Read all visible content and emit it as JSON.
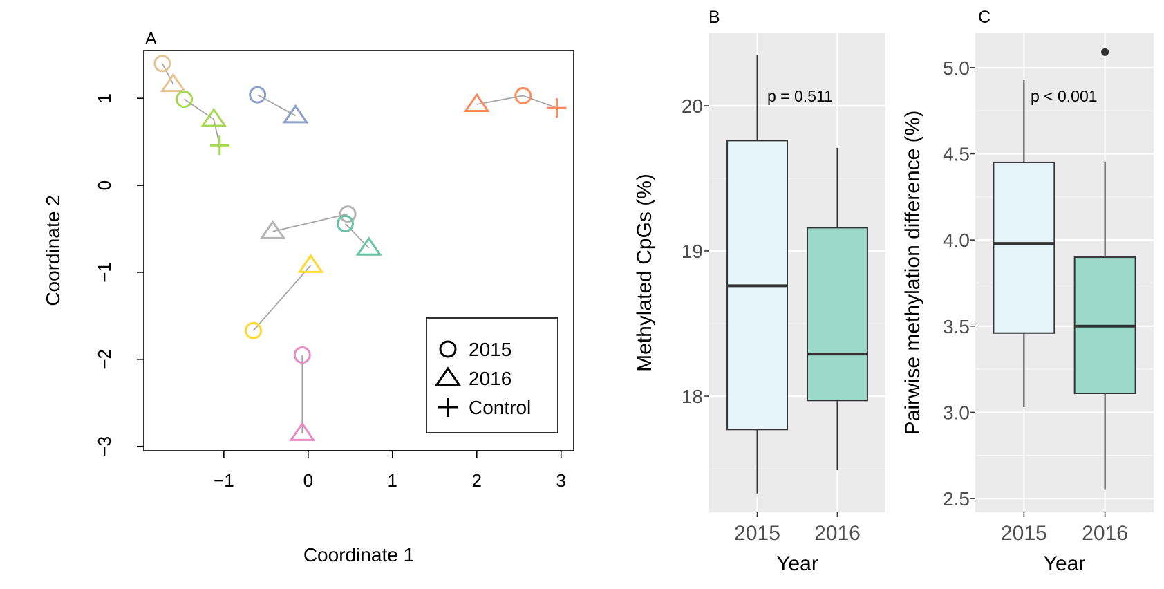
{
  "chart_data": [
    {
      "panel_label": "A",
      "type": "scatter",
      "xlabel": "Coordinate 1",
      "ylabel": "Coordinate 2",
      "xlim": [
        -1.95,
        3.15
      ],
      "ylim": [
        -3.05,
        1.55
      ],
      "xticks": [
        -1,
        0,
        1,
        2,
        3
      ],
      "xtick_labels": [
        "−1",
        "0",
        "1",
        "2",
        "3"
      ],
      "yticks": [
        -3,
        -2,
        -1,
        0,
        1
      ],
      "ytick_labels": [
        "−3",
        "−2",
        "−1",
        "0",
        "1"
      ],
      "legend_position": "bottom-right",
      "legend": [
        {
          "symbol": "circle",
          "label": "2015"
        },
        {
          "symbol": "triangle",
          "label": "2016"
        },
        {
          "symbol": "plus",
          "label": "Control"
        }
      ],
      "groups": [
        {
          "color": "#e5c494",
          "points": [
            {
              "shape": "circle",
              "x": -1.73,
              "y": 1.4
            },
            {
              "shape": "triangle",
              "x": -1.6,
              "y": 1.16
            }
          ]
        },
        {
          "color": "#a6d854",
          "points": [
            {
              "shape": "circle",
              "x": -1.47,
              "y": 0.99
            },
            {
              "shape": "triangle",
              "x": -1.12,
              "y": 0.76
            },
            {
              "shape": "plus",
              "x": -1.05,
              "y": 0.46
            }
          ]
        },
        {
          "color": "#8da0cb",
          "points": [
            {
              "shape": "circle",
              "x": -0.6,
              "y": 1.04
            },
            {
              "shape": "triangle",
              "x": -0.15,
              "y": 0.8
            }
          ]
        },
        {
          "color": "#fc8d62",
          "points": [
            {
              "shape": "triangle",
              "x": 2.0,
              "y": 0.93
            },
            {
              "shape": "circle",
              "x": 2.55,
              "y": 1.03
            },
            {
              "shape": "plus",
              "x": 2.95,
              "y": 0.89
            }
          ]
        },
        {
          "color": "#b3b3b3",
          "points": [
            {
              "shape": "triangle",
              "x": -0.42,
              "y": -0.53
            },
            {
              "shape": "circle",
              "x": 0.47,
              "y": -0.33
            }
          ]
        },
        {
          "color": "#66c2a5",
          "points": [
            {
              "shape": "circle",
              "x": 0.44,
              "y": -0.44
            },
            {
              "shape": "triangle",
              "x": 0.72,
              "y": -0.72
            }
          ]
        },
        {
          "color": "#ffd92f",
          "points": [
            {
              "shape": "circle",
              "x": -0.65,
              "y": -1.67
            },
            {
              "shape": "triangle",
              "x": 0.03,
              "y": -0.92
            }
          ]
        },
        {
          "color": "#e78ac3",
          "points": [
            {
              "shape": "circle",
              "x": -0.07,
              "y": -1.95
            },
            {
              "shape": "triangle",
              "x": -0.07,
              "y": -2.85
            }
          ]
        }
      ]
    },
    {
      "panel_label": "B",
      "type": "boxplot",
      "xlabel": "Year",
      "ylabel": "Methylated CpGs (%)",
      "categories": [
        "2015",
        "2016"
      ],
      "ylim": [
        17.2,
        20.5
      ],
      "yticks": [
        18,
        19,
        20
      ],
      "ytick_labels": [
        "18",
        "19",
        "20"
      ],
      "annotation": "p = 0.511",
      "boxes": [
        {
          "label": "2015",
          "min": 17.33,
          "q1": 17.77,
          "median": 18.76,
          "q3": 19.76,
          "max": 20.35,
          "fill": "#e5f5fa"
        },
        {
          "label": "2016",
          "min": 17.49,
          "q1": 17.97,
          "median": 18.29,
          "q3": 19.16,
          "max": 19.71,
          "fill": "#9bdaca"
        }
      ],
      "outliers": []
    },
    {
      "panel_label": "C",
      "type": "boxplot",
      "xlabel": "Year",
      "ylabel": "Pairwise methylation difference (%)",
      "categories": [
        "2015",
        "2016"
      ],
      "ylim": [
        2.42,
        5.2
      ],
      "yticks": [
        2.5,
        3.0,
        3.5,
        4.0,
        4.5,
        5.0
      ],
      "ytick_labels": [
        "2.5",
        "3.0",
        "3.5",
        "4.0",
        "4.5",
        "5.0"
      ],
      "annotation": "p < 0.001",
      "boxes": [
        {
          "label": "2015",
          "min": 3.03,
          "q1": 3.46,
          "median": 3.98,
          "q3": 4.45,
          "max": 4.93,
          "fill": "#e5f5fa"
        },
        {
          "label": "2016",
          "min": 2.55,
          "q1": 3.11,
          "median": 3.5,
          "q3": 3.9,
          "max": 4.45,
          "fill": "#9bdaca"
        }
      ],
      "outliers": [
        {
          "category": "2016",
          "value": 5.09
        }
      ]
    }
  ]
}
